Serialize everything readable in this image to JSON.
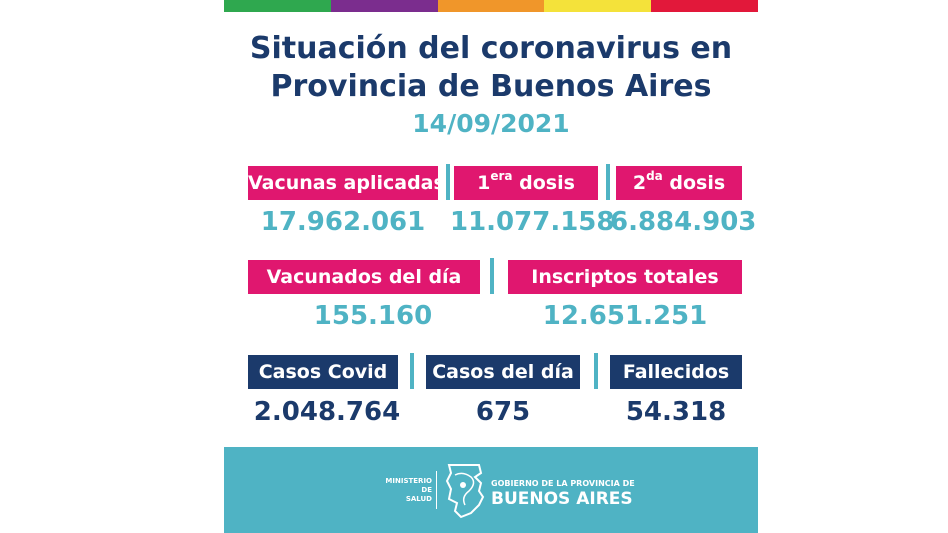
{
  "colors": {
    "stripes": [
      "#2fa84f",
      "#7b2d8e",
      "#f0962a",
      "#f4e23a",
      "#e2183a"
    ],
    "pink": "#e0176f",
    "navy": "#1b3a6b",
    "teal": "#4fb3c4"
  },
  "header": {
    "title_line1": "Situación del coronavirus en",
    "title_line2": "Provincia de Buenos Aires",
    "date": "14/09/2021"
  },
  "vaccines": {
    "applied_label": "Vacunas aplicadas",
    "applied_value": "17.962.061",
    "first_dose_num": "1",
    "first_dose_sup": "era",
    "first_dose_word": "dosis",
    "first_dose_value": "11.077.158",
    "second_dose_num": "2",
    "second_dose_sup": "da",
    "second_dose_word": "dosis",
    "second_dose_value": "6.884.903"
  },
  "daily": {
    "vaccinated_label": "Vacunados del día",
    "vaccinated_value": "155.160",
    "registered_label": "Inscriptos totales",
    "registered_value": "12.651.251"
  },
  "covid": {
    "cases_label": "Casos Covid",
    "cases_value": "2.048.764",
    "daily_cases_label": "Casos del día",
    "daily_cases_value": "675",
    "deaths_label": "Fallecidos",
    "deaths_value": "54.318"
  },
  "footer": {
    "ministry_line1": "MINISTERIO DE",
    "ministry_line2": "SALUD",
    "gov_line": "GOBIERNO DE LA PROVINCIA DE",
    "province_name": "BUENOS AIRES",
    "logo_icon": "province-map-icon"
  }
}
